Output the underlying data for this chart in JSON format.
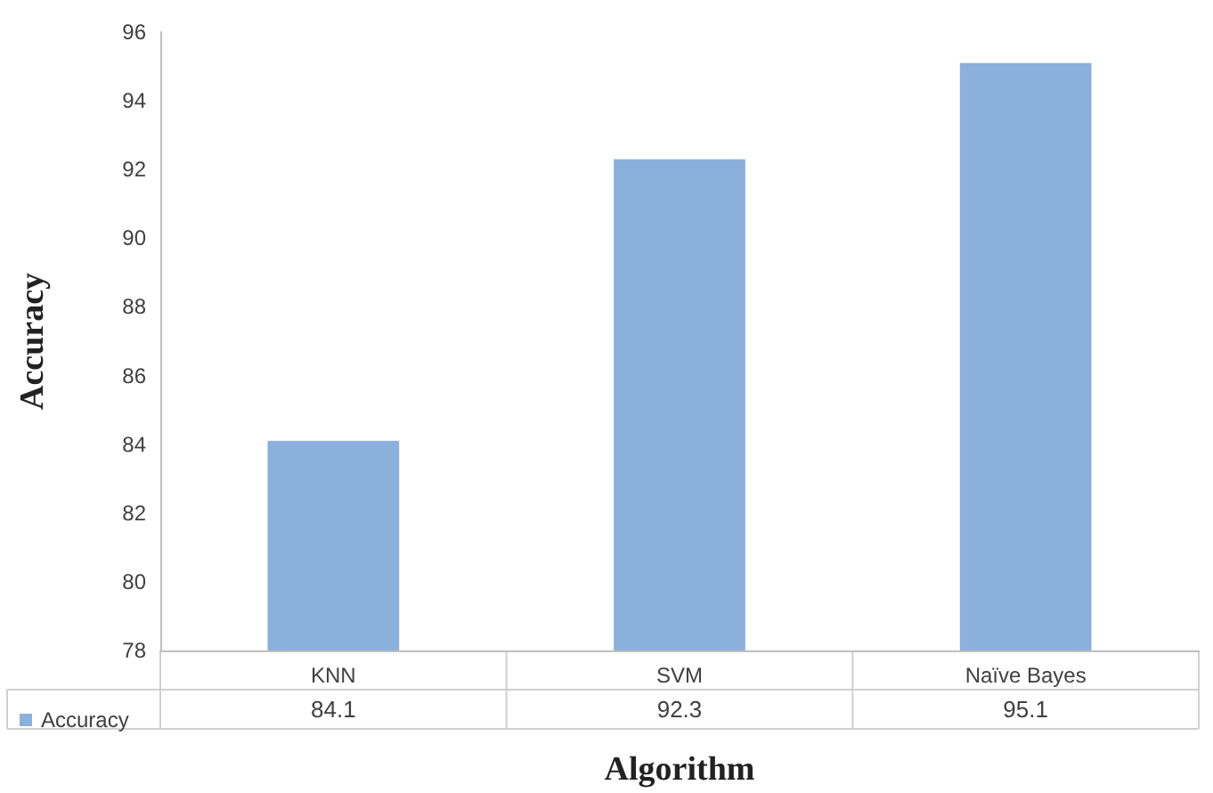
{
  "chart_data": {
    "type": "bar",
    "xlabel": "Algorithm",
    "ylabel": "Accuracy",
    "categories": [
      "KNN",
      "SVM",
      "Naïve Bayes"
    ],
    "series": [
      {
        "name": "Accuracy",
        "color": "#8cb0dc",
        "values": [
          84.1,
          92.3,
          95.1
        ]
      }
    ],
    "ylim": [
      78,
      96
    ],
    "yticks": [
      78,
      80,
      82,
      84,
      86,
      88,
      90,
      92,
      94,
      96
    ],
    "grid": false,
    "legend": "bottom",
    "data_labels": true
  }
}
